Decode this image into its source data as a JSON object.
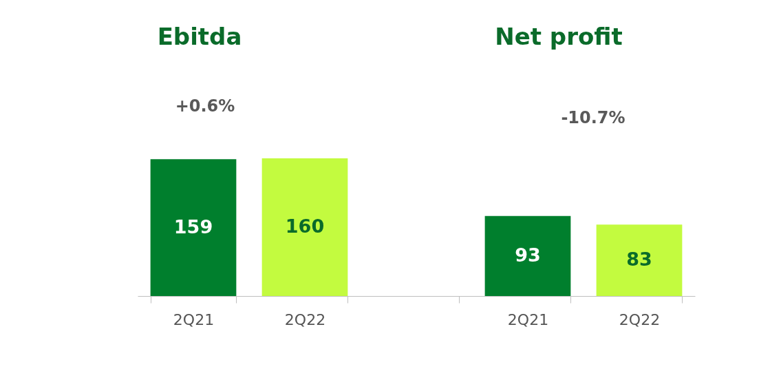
{
  "chart_data": {
    "type": "bar",
    "categories": [
      "2Q21",
      "2Q22",
      null,
      "2Q21",
      "2Q22"
    ],
    "values": [
      159,
      160,
      null,
      93,
      83
    ],
    "colors": [
      "#007f2d",
      "#c3fb3f",
      null,
      "#007f2d",
      "#c3fb3f"
    ],
    "data_labels": true,
    "annotations": [
      "Ebitda",
      "Net profit",
      "+0.6%",
      "-10.7%"
    ]
  }
}
